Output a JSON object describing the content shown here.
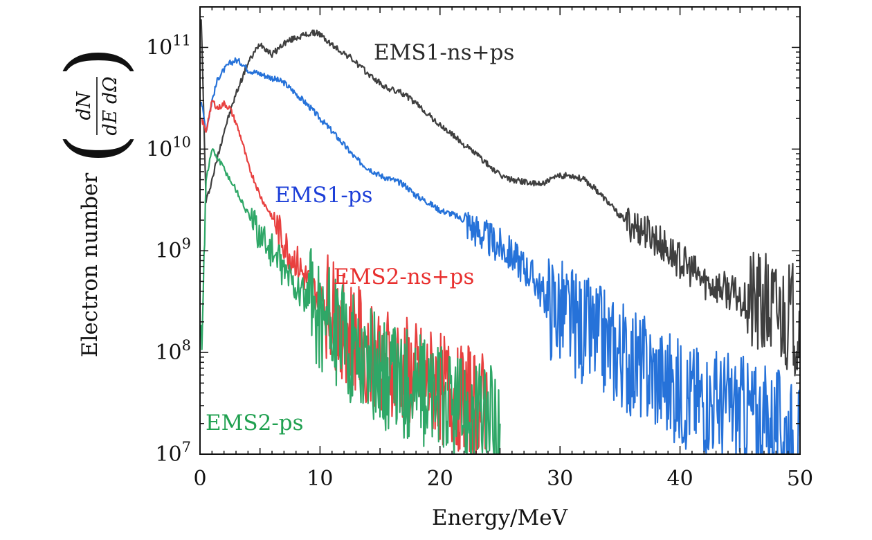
{
  "chart_data": {
    "type": "line",
    "xlabel": "Energy/MeV",
    "ylabel_text": "Electron number",
    "ylabel_fraction": {
      "numerator": "dN",
      "denominator": "dE dΩ"
    },
    "xlim": [
      0,
      50
    ],
    "ylim": [
      10000000.0,
      250000000000.0
    ],
    "y_scale": "log",
    "x_ticks": [
      0,
      10,
      20,
      30,
      40,
      50
    ],
    "y_ticks": [
      {
        "value": 100000000000.0,
        "base": "10",
        "exp": "11"
      },
      {
        "value": 10000000000.0,
        "base": "10",
        "exp": "10"
      },
      {
        "value": 1000000000.0,
        "base": "10",
        "exp": "9"
      },
      {
        "value": 100000000.0,
        "base": "10",
        "exp": "8"
      },
      {
        "value": 10000000.0,
        "base": "10",
        "exp": "7"
      }
    ],
    "grid": false,
    "legend": "inline labels",
    "series": [
      {
        "name": "EMS1-ns+ps",
        "color": "#3f3f3f",
        "x": [
          0.1,
          0.5,
          1.0,
          2.0,
          3.0,
          4.0,
          5.0,
          6.0,
          7.0,
          8.0,
          9.0,
          9.8,
          11.0,
          12.5,
          14.0,
          15.5,
          17.0,
          18.5,
          20.0,
          21.0,
          22.0,
          23.0,
          24.0,
          25.0,
          26.0,
          27.0,
          28.0,
          29.0,
          30.0,
          31.0,
          32.0,
          33.0,
          34.0,
          35.0,
          36.0,
          37.0,
          38.0,
          39.0,
          40.0,
          42.0,
          44.0,
          46.0,
          48.0,
          50.0
        ],
        "y": [
          200000000000.0,
          3000000000.0,
          5000000000.0,
          15000000000.0,
          35000000000.0,
          70000000000.0,
          110000000000.0,
          85000000000.0,
          110000000000.0,
          125000000000.0,
          135000000000.0,
          140000000000.0,
          105000000000.0,
          80000000000.0,
          55000000000.0,
          40000000000.0,
          35000000000.0,
          25000000000.0,
          17000000000.0,
          14000000000.0,
          11000000000.0,
          9000000000.0,
          7000000000.0,
          5500000000.0,
          5000000000.0,
          4800000000.0,
          4500000000.0,
          4800000000.0,
          5500000000.0,
          5500000000.0,
          5000000000.0,
          4000000000.0,
          3000000000.0,
          2200000000.0,
          1800000000.0,
          1600000000.0,
          1300000000.0,
          1000000000.0,
          800000000.0,
          500000000.0,
          400000000.0,
          300000000.0,
          250000000.0,
          200000000.0
        ]
      },
      {
        "name": "EMS1-ps",
        "color": "#2672d9",
        "x": [
          0.1,
          0.5,
          1.0,
          1.5,
          2.0,
          2.5,
          3.0,
          3.5,
          4.0,
          5.0,
          6.0,
          7.0,
          8.0,
          9.0,
          10.0,
          11.0,
          12.0,
          13.0,
          14.0,
          15.0,
          16.0,
          17.0,
          18.0,
          19.0,
          20.0,
          21.0,
          22.0,
          23.0,
          24.0,
          25.0,
          26.0,
          27.0,
          28.0,
          29.0,
          30.0,
          32.0,
          34.0,
          36.0,
          38.0,
          40.0,
          42.0,
          44.0,
          46.0,
          48.0,
          50.0
        ],
        "y": [
          30000000000.0,
          15000000000.0,
          30000000000.0,
          50000000000.0,
          60000000000.0,
          70000000000.0,
          75000000000.0,
          70000000000.0,
          60000000000.0,
          55000000000.0,
          50000000000.0,
          45000000000.0,
          35000000000.0,
          27000000000.0,
          20000000000.0,
          15000000000.0,
          11000000000.0,
          8000000000.0,
          6500000000.0,
          5500000000.0,
          5000000000.0,
          4500000000.0,
          3500000000.0,
          3000000000.0,
          2500000000.0,
          2300000000.0,
          2000000000.0,
          1600000000.0,
          1300000000.0,
          1100000000.0,
          900000000.0,
          700000000.0,
          500000000.0,
          300000000.0,
          250000000.0,
          160000000.0,
          120000000.0,
          80000000.0,
          60000000.0,
          40000000.0,
          35000000.0,
          30000000.0,
          25000000.0,
          20000000.0,
          15000000.0
        ]
      },
      {
        "name": "EMS2-ns+ps",
        "color": "#e8403f",
        "x": [
          0.1,
          0.5,
          1.0,
          1.5,
          2.0,
          2.5,
          3.0,
          3.5,
          4.0,
          4.5,
          5.0,
          5.5,
          6.0,
          6.5,
          7.0,
          7.5,
          8.0,
          8.5,
          9.0,
          9.5,
          10.0,
          11.0,
          12.0,
          13.0,
          14.0,
          15.0,
          16.0,
          17.0,
          18.0,
          19.0,
          20.0,
          21.0,
          22.0,
          23.0,
          24.0
        ],
        "y": [
          20000000000.0,
          15000000000.0,
          30000000000.0,
          25000000000.0,
          28000000000.0,
          25000000000.0,
          18000000000.0,
          12000000000.0,
          7000000000.0,
          5000000000.0,
          3500000000.0,
          2700000000.0,
          2200000000.0,
          1600000000.0,
          1200000000.0,
          900000000.0,
          800000000.0,
          600000000.0,
          500000000.0,
          400000000.0,
          350000000.0,
          250000000.0,
          180000000.0,
          130000000.0,
          110000000.0,
          90000000.0,
          80000000.0,
          65000000.0,
          55000000.0,
          50000000.0,
          45000000.0,
          40000000.0,
          35000000.0,
          30000000.0,
          28000000.0
        ]
      },
      {
        "name": "EMS2-ps",
        "color": "#2fa767",
        "x": [
          0.1,
          0.5,
          1.0,
          1.5,
          2.0,
          2.5,
          3.0,
          3.5,
          4.0,
          4.5,
          5.0,
          5.5,
          6.0,
          6.5,
          7.0,
          7.5,
          8.0,
          8.5,
          9.0,
          9.5,
          10.0,
          11.0,
          12.0,
          13.0,
          14.0,
          15.0,
          16.0,
          17.0,
          18.0,
          19.0,
          20.0,
          21.0,
          22.0,
          23.0,
          24.0,
          25.0
        ],
        "y": [
          100000000.0,
          5000000000.0,
          10000000000.0,
          8000000000.0,
          6500000000.0,
          5000000000.0,
          4000000000.0,
          3000000000.0,
          2300000000.0,
          1800000000.0,
          1500000000.0,
          1200000000.0,
          1000000000.0,
          800000000.0,
          650000000.0,
          550000000.0,
          450000000.0,
          380000000.0,
          320000000.0,
          280000000.0,
          240000000.0,
          180000000.0,
          130000000.0,
          100000000.0,
          80000000.0,
          65000000.0,
          55000000.0,
          50000000.0,
          45000000.0,
          40000000.0,
          35000000.0,
          30000000.0,
          28000000.0,
          25000000.0,
          22000000.0,
          20000000.0
        ]
      }
    ]
  }
}
